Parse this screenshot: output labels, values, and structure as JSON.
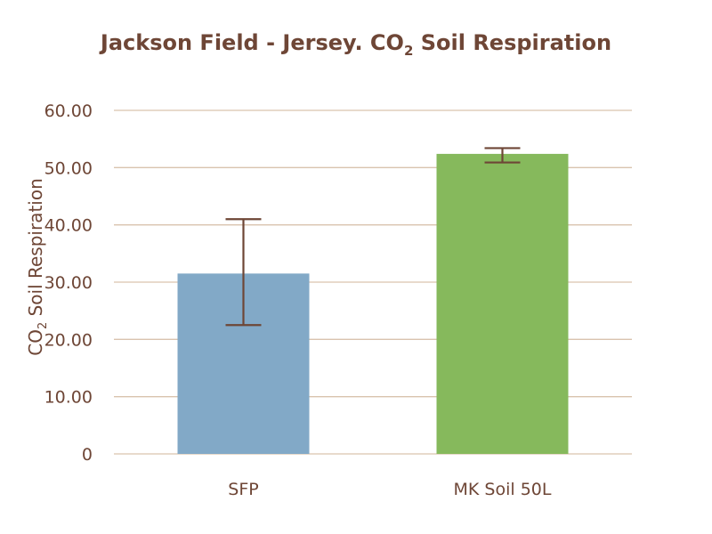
{
  "chart_data": {
    "type": "bar",
    "title_main": "Jackson Field - Jersey. CO",
    "title_sub": "2",
    "title_rest": " Soil Respiration",
    "ylabel_main": "CO",
    "ylabel_sub": "2",
    "ylabel_rest": " Soil Respiration",
    "xlabel": "",
    "categories": [
      "SFP",
      "MK Soil 50L"
    ],
    "values": [
      31.5,
      52.4
    ],
    "error_low": [
      22.5,
      50.9
    ],
    "error_high": [
      41.0,
      53.4
    ],
    "bar_colors": [
      "#82a9c7",
      "#86b95c"
    ],
    "ylim": [
      0,
      60
    ],
    "yticks": [
      0,
      10,
      20,
      30,
      40,
      50,
      60
    ],
    "ytick_labels": [
      "0",
      "10.00",
      "20.00",
      "30.00",
      "40.00",
      "50.00",
      "60.00"
    ],
    "grid": true,
    "grid_color": "#d9c3ae",
    "error_bar_color": "#6e4636",
    "text_color": "#6e4636"
  }
}
